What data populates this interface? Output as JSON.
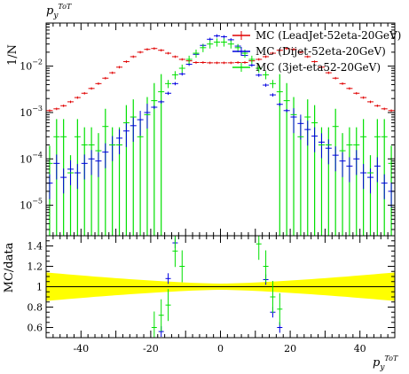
{
  "chart_data": {
    "type": "scatter",
    "title": "p_y^{ToT}",
    "title_main": "p",
    "title_sub": "y",
    "title_sup": "ToT",
    "xlabel_main": "p",
    "xlabel_sub": "y",
    "xlabel_sup": "ToT",
    "ylabel_top": "1/N",
    "ylabel_bottom": "MC/data",
    "xlim": [
      -50,
      50
    ],
    "top_panel": {
      "yscale": "log",
      "ylim": [
        2.2e-06,
        0.085
      ],
      "yticks": [
        {
          "value": 1e-05,
          "mant": "10",
          "exp": "−5"
        },
        {
          "value": 0.0001,
          "mant": "10",
          "exp": "−4"
        },
        {
          "value": 0.001,
          "mant": "10",
          "exp": "−3"
        },
        {
          "value": 0.01,
          "mant": "10",
          "exp": "−2"
        }
      ]
    },
    "bottom_panel": {
      "ylim": [
        0.5,
        1.5
      ],
      "yticks": [
        "0.6",
        "0.8",
        "1",
        "1.2",
        "1.4"
      ],
      "reference": 1.0,
      "band_color": "#ffff00"
    },
    "xticks": [
      "-40",
      "-20",
      "0",
      "20",
      "40"
    ],
    "legend_position": "top-right",
    "series": [
      {
        "name": "MC (LeadJet-52eta-20GeV)",
        "color": "#e00000",
        "x": [
          -49,
          -47,
          -45,
          -43,
          -41,
          -39,
          -37,
          -35,
          -33,
          -31,
          -29,
          -27,
          -25,
          -23,
          -21,
          -19,
          -17,
          -15,
          -13,
          -11,
          -9,
          -7,
          -5,
          -3,
          -1,
          1,
          3,
          5,
          7,
          9,
          11,
          13,
          15,
          17,
          19,
          21,
          23,
          25,
          27,
          29,
          31,
          33,
          35,
          37,
          39,
          41,
          43,
          45,
          47,
          49
        ],
        "y": [
          0.0011,
          0.0012,
          0.0014,
          0.0017,
          0.0021,
          0.0026,
          0.0033,
          0.0042,
          0.0055,
          0.0072,
          0.0095,
          0.0125,
          0.016,
          0.02,
          0.023,
          0.024,
          0.022,
          0.019,
          0.016,
          0.014,
          0.013,
          0.012,
          0.012,
          0.0118,
          0.0118,
          0.0118,
          0.0118,
          0.012,
          0.012,
          0.013,
          0.014,
          0.016,
          0.019,
          0.022,
          0.024,
          0.023,
          0.02,
          0.016,
          0.0125,
          0.0095,
          0.0072,
          0.0055,
          0.0042,
          0.0033,
          0.0026,
          0.0021,
          0.0017,
          0.0014,
          0.0012,
          0.0011
        ]
      },
      {
        "name": "MC (Dijet-52eta-20GeV)",
        "color": "#0000e0",
        "x": [
          -49,
          -47,
          -45,
          -43,
          -41,
          -39,
          -37,
          -35,
          -33,
          -31,
          -29,
          -27,
          -25,
          -23,
          -21,
          -19,
          -17,
          -15,
          -13,
          -11,
          -9,
          -7,
          -5,
          -3,
          -1,
          1,
          3,
          5,
          7,
          9,
          11,
          13,
          15,
          17,
          19,
          21,
          23,
          25,
          27,
          29,
          31,
          33,
          35,
          37,
          39,
          41,
          43,
          45,
          47,
          49
        ],
        "y": [
          3e-05,
          8e-05,
          4e-05,
          6e-05,
          5e-05,
          8e-05,
          0.0001,
          9e-05,
          0.00014,
          0.0002,
          0.00028,
          0.0004,
          0.00052,
          0.0007,
          0.001,
          0.0013,
          0.0017,
          0.0026,
          0.0042,
          0.0068,
          0.011,
          0.018,
          0.028,
          0.038,
          0.045,
          0.043,
          0.037,
          0.027,
          0.017,
          0.0105,
          0.0064,
          0.0039,
          0.0024,
          0.0015,
          0.0011,
          0.0008,
          0.00058,
          0.00043,
          0.00031,
          0.00023,
          0.00017,
          0.00012,
          9e-05,
          7e-05,
          0.0001,
          5e-05,
          4e-05,
          7e-05,
          3e-05,
          2e-05
        ]
      },
      {
        "name": "MC (3jet-eta52-20GeV)",
        "color": "#00e000",
        "x": [
          -49,
          -47,
          -45,
          -43,
          -41,
          -39,
          -37,
          -35,
          -33,
          -31,
          -29,
          -27,
          -25,
          -23,
          -21,
          -19,
          -17,
          -15,
          -13,
          -11,
          -9,
          -7,
          -5,
          -3,
          -1,
          1,
          3,
          5,
          7,
          9,
          11,
          13,
          15,
          17,
          19,
          21,
          23,
          25,
          27,
          29,
          31,
          33,
          35,
          37,
          39,
          41,
          43,
          45,
          47,
          49
        ],
        "y": [
          8e-05,
          0.0003,
          0.0003,
          5e-05,
          0.0003,
          0.0002,
          0.0002,
          0.00015,
          0.0005,
          0.0002,
          0.0002,
          0.0006,
          0.0008,
          0.0003,
          0.0009,
          0.0018,
          0.0028,
          0.0042,
          0.0065,
          0.009,
          0.014,
          0.019,
          0.025,
          0.03,
          0.033,
          0.033,
          0.03,
          0.025,
          0.019,
          0.014,
          0.009,
          0.0065,
          0.0042,
          0.0028,
          0.0018,
          0.0009,
          0.0003,
          0.0008,
          0.0006,
          0.0002,
          0.0002,
          0.0005,
          0.00015,
          0.0002,
          0.0002,
          0.0003,
          5e-05,
          0.0003,
          0.0003,
          8e-05
        ]
      }
    ],
    "ratio_points": [
      {
        "series": 1,
        "x": -13,
        "y": 1.43
      },
      {
        "series": 1,
        "x": -15,
        "y": 1.08
      },
      {
        "series": 1,
        "x": -17,
        "y": 0.56
      },
      {
        "series": 2,
        "x": -13,
        "y": 1.35
      },
      {
        "series": 2,
        "x": -15,
        "y": 0.82
      },
      {
        "series": 2,
        "x": -17,
        "y": 0.72
      },
      {
        "series": 2,
        "x": -11,
        "y": 1.2
      },
      {
        "series": 2,
        "x": -19,
        "y": 0.6
      },
      {
        "series": 1,
        "x": 13,
        "y": 1.07
      },
      {
        "series": 1,
        "x": 15,
        "y": 0.75
      },
      {
        "series": 1,
        "x": 17,
        "y": 0.6
      },
      {
        "series": 2,
        "x": 11,
        "y": 1.42
      },
      {
        "series": 2,
        "x": 13,
        "y": 1.2
      },
      {
        "series": 2,
        "x": 15,
        "y": 0.9
      },
      {
        "series": 2,
        "x": 17,
        "y": 0.78
      }
    ]
  }
}
